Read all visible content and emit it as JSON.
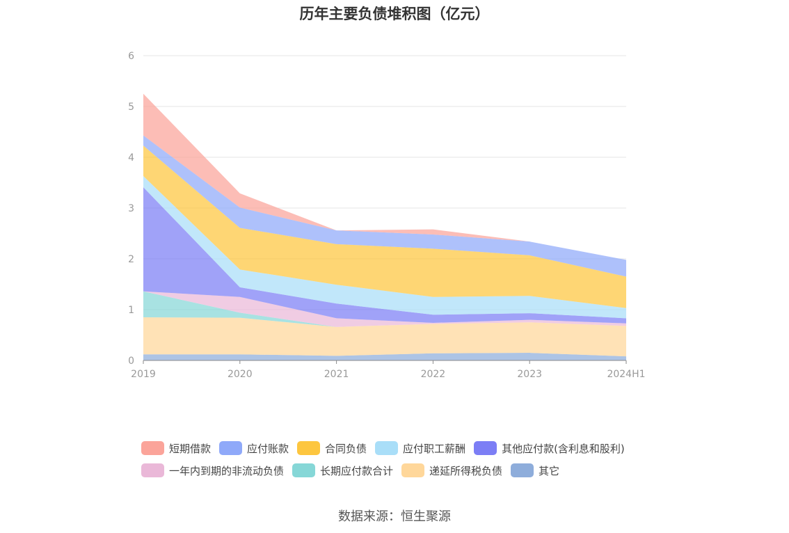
{
  "title": "历年主要负债堆积图（亿元）",
  "source": "数据来源：恒生聚源",
  "chart_data": {
    "type": "area",
    "stacked": true,
    "categories": [
      "2019",
      "2020",
      "2021",
      "2022",
      "2023",
      "2024H1"
    ],
    "ylim": [
      0,
      6
    ],
    "yticks": [
      0,
      1,
      2,
      3,
      4,
      5,
      6
    ],
    "grid": true,
    "legend_position": "bottom",
    "series": [
      {
        "name": "其它",
        "color": "#8eaddb",
        "values": [
          0.12,
          0.12,
          0.09,
          0.14,
          0.15,
          0.08
        ]
      },
      {
        "name": "递延所得税负债",
        "color": "#ffd79a",
        "values": [
          0.73,
          0.72,
          0.57,
          0.58,
          0.6,
          0.6
        ]
      },
      {
        "name": "长期应付款合计",
        "color": "#86d7d7",
        "values": [
          0.51,
          0.1,
          0.0,
          0.0,
          0.0,
          0.0
        ]
      },
      {
        "name": "一年内到期的非流动负债",
        "color": "#eab8d8",
        "values": [
          0.0,
          0.31,
          0.17,
          0.02,
          0.05,
          0.05
        ]
      },
      {
        "name": "其他应付款(含利息和股利)",
        "color": "#7c7ef5",
        "values": [
          2.05,
          0.19,
          0.29,
          0.16,
          0.13,
          0.1
        ]
      },
      {
        "name": "应付职工薪酬",
        "color": "#a9def8",
        "values": [
          0.22,
          0.35,
          0.37,
          0.35,
          0.34,
          0.2
        ]
      },
      {
        "name": "合同负债",
        "color": "#fdc63f",
        "values": [
          0.6,
          0.82,
          0.8,
          0.95,
          0.8,
          0.62
        ]
      },
      {
        "name": "应付账款",
        "color": "#8fa9f9",
        "values": [
          0.2,
          0.4,
          0.27,
          0.28,
          0.27,
          0.33
        ]
      },
      {
        "name": "短期借款",
        "color": "#fba49a",
        "values": [
          0.82,
          0.28,
          0.0,
          0.1,
          0.0,
          0.0
        ]
      }
    ],
    "legend": [
      {
        "name": "短期借款",
        "color": "#fba49a"
      },
      {
        "name": "应付账款",
        "color": "#8fa9f9"
      },
      {
        "name": "合同负债",
        "color": "#fdc63f"
      },
      {
        "name": "应付职工薪酬",
        "color": "#a9def8"
      },
      {
        "name": "其他应付款(含利息和股利)",
        "color": "#7c7ef5"
      },
      {
        "name": "一年内到期的非流动负债",
        "color": "#eab8d8"
      },
      {
        "name": "长期应付款合计",
        "color": "#86d7d7"
      },
      {
        "name": "递延所得税负债",
        "color": "#ffd79a"
      },
      {
        "name": "其它",
        "color": "#8eaddb"
      }
    ]
  }
}
